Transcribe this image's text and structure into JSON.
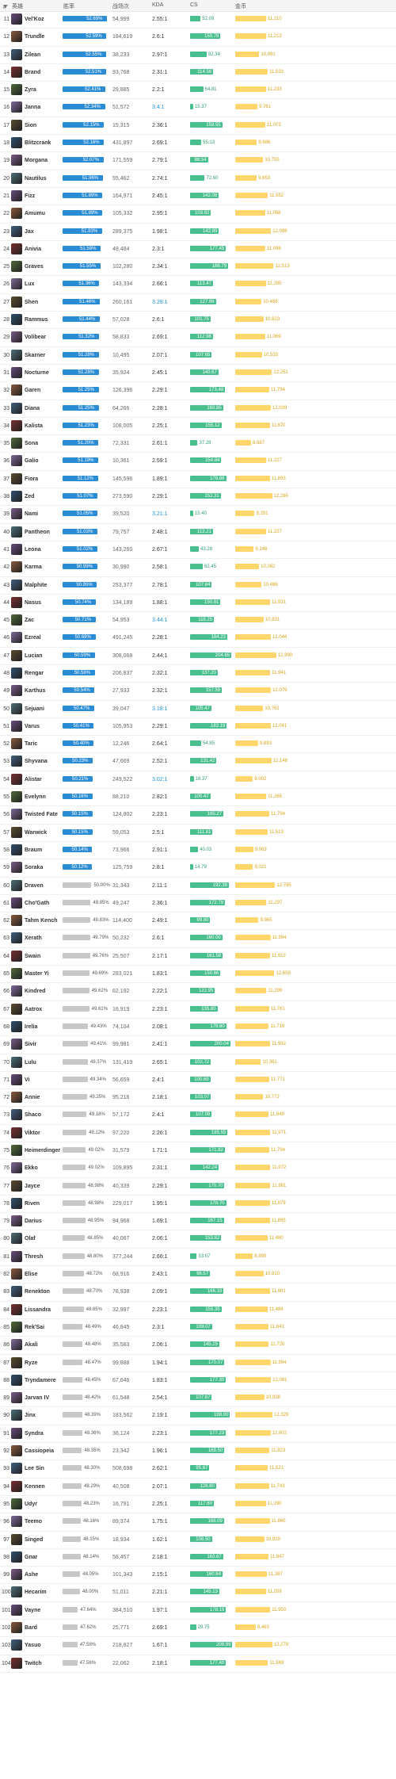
{
  "header": {
    "rank_label": "#",
    "hero": "英雄",
    "winrate": "胜率",
    "games": "战场次",
    "kda": "KDA",
    "cs": "CS",
    "gold": "金币"
  },
  "colors": {
    "winrate_high": "#2b8cd6",
    "winrate_low": "#c8c8c8",
    "cs": "#49bf8d",
    "gold": "#ffd66b",
    "kda_highlight": "#2196d9"
  },
  "rows": [
    {
      "rank": "11",
      "name": "Vel'Koz",
      "winrate": "52.69%",
      "games": "54,999",
      "kda": "2.55:1",
      "cs": "52.09",
      "gold": "11,210"
    },
    {
      "rank": "12",
      "name": "Trundle",
      "winrate": "52.59%",
      "games": "184,619",
      "kda": "2.6:1",
      "cs": "150.79",
      "gold": "11,213"
    },
    {
      "rank": "13",
      "name": "Zilean",
      "winrate": "52.55%",
      "games": "38,233",
      "kda": "2.97:1",
      "cs": "82.34",
      "gold": "10,091"
    },
    {
      "rank": "14",
      "name": "Brand",
      "winrate": "52.51%",
      "games": "93,768",
      "kda": "2.31:1",
      "cs": "114.56",
      "gold": "11,533"
    },
    {
      "rank": "15",
      "name": "Zyra",
      "winrate": "52.41%",
      "games": "29,885",
      "kda": "2.2:1",
      "cs": "64.81",
      "gold": "11,233"
    },
    {
      "rank": "16",
      "name": "Janna",
      "winrate": "52.34%",
      "games": "51,572",
      "kda": "3.4:1",
      "cs": "15.37",
      "gold": "9,761"
    },
    {
      "rank": "17",
      "name": "Sion",
      "winrate": "52.15%",
      "games": "15,315",
      "kda": "2.36:1",
      "cs": "159.55",
      "gold": "11,073"
    },
    {
      "rank": "18",
      "name": "Blitzcrank",
      "winrate": "52.16%",
      "games": "431,897",
      "kda": "2.69:1",
      "cs": "55.13",
      "gold": "9,686"
    },
    {
      "rank": "19",
      "name": "Morgana",
      "winrate": "52.07%",
      "games": "171,559",
      "kda": "2.79:1",
      "cs": "88.54",
      "gold": "10,755"
    },
    {
      "rank": "20",
      "name": "Nautilus",
      "winrate": "51.96%",
      "games": "55,462",
      "kda": "2.74:1",
      "cs": "72.60",
      "gold": "9,653"
    },
    {
      "rank": "21",
      "name": "Fizz",
      "winrate": "51.89%",
      "games": "164,971",
      "kda": "2.45:1",
      "cs": "142.08",
      "gold": "11,552"
    },
    {
      "rank": "22",
      "name": "Amumu",
      "winrate": "51.89%",
      "games": "105,332",
      "kda": "2.95:1",
      "cs": "103.92",
      "gold": "11,058"
    },
    {
      "rank": "23",
      "name": "Jax",
      "winrate": "51.83%",
      "games": "289,375",
      "kda": "1.98:1",
      "cs": "142.89",
      "gold": "12,098"
    },
    {
      "rank": "24",
      "name": "Anivia",
      "winrate": "51.59%",
      "games": "48,484",
      "kda": "2.3:1",
      "cs": "177.45",
      "gold": "11,098"
    },
    {
      "rank": "25",
      "name": "Graves",
      "winrate": "51.55%",
      "games": "102,280",
      "kda": "2.34:1",
      "cs": "188.79",
      "gold": "12,513"
    },
    {
      "rank": "26",
      "name": "Lux",
      "winrate": "51.36%",
      "games": "143,334",
      "kda": "2.66:1",
      "cs": "113.47",
      "gold": "11,185"
    },
    {
      "rank": "27",
      "name": "Shen",
      "winrate": "51.46%",
      "games": "260,161",
      "kda": "3.28:1",
      "cs": "127.96",
      "gold": "10,468"
    },
    {
      "rank": "28",
      "name": "Rammus",
      "winrate": "51.44%",
      "games": "57,028",
      "kda": "2.6:1",
      "cs": "101.75",
      "gold": "10,823"
    },
    {
      "rank": "29",
      "name": "Volibear",
      "winrate": "51.32%",
      "games": "58,833",
      "kda": "2.69:1",
      "cs": "112.98",
      "gold": "11,069"
    },
    {
      "rank": "30",
      "name": "Skarner",
      "winrate": "51.28%",
      "games": "10,495",
      "kda": "2.07:1",
      "cs": "107.65",
      "gold": "10,533"
    },
    {
      "rank": "31",
      "name": "Nocturne",
      "winrate": "51.28%",
      "games": "35,924",
      "kda": "2.45:1",
      "cs": "140.67",
      "gold": "12,251"
    },
    {
      "rank": "32",
      "name": "Garen",
      "winrate": "51.25%",
      "games": "126,396",
      "kda": "2.29:1",
      "cs": "173.48",
      "gold": "11,794"
    },
    {
      "rank": "33",
      "name": "Diana",
      "winrate": "51.25%",
      "games": "64,266",
      "kda": "2.28:1",
      "cs": "163.85",
      "gold": "12,039"
    },
    {
      "rank": "34",
      "name": "Kalista",
      "winrate": "51.23%",
      "games": "108,005",
      "kda": "2.25:1",
      "cs": "155.12",
      "gold": "11,870"
    },
    {
      "rank": "35",
      "name": "Sona",
      "winrate": "51.20%",
      "games": "72,331",
      "kda": "2.61:1",
      "cs": "37.28",
      "gold": "8,687"
    },
    {
      "rank": "36",
      "name": "Galio",
      "winrate": "51.19%",
      "games": "10,361",
      "kda": "2.59:1",
      "cs": "154.84",
      "gold": "11,227"
    },
    {
      "rank": "37",
      "name": "Fiora",
      "winrate": "51.12%",
      "games": "145,596",
      "kda": "1.89:1",
      "cs": "178.68",
      "gold": "11,893"
    },
    {
      "rank": "38",
      "name": "Zed",
      "winrate": "51.07%",
      "games": "273,590",
      "kda": "2.29:1",
      "cs": "152.31",
      "gold": "12,265"
    },
    {
      "rank": "39",
      "name": "Nami",
      "winrate": "51.05%",
      "games": "39,520",
      "kda": "3.21:1",
      "cs": "15.40",
      "gold": "9,291"
    },
    {
      "rank": "40",
      "name": "Pantheon",
      "winrate": "51.03%",
      "games": "79,757",
      "kda": "2.48:1",
      "cs": "113.21",
      "gold": "11,227"
    },
    {
      "rank": "41",
      "name": "Leona",
      "winrate": "51.02%",
      "games": "143,260",
      "kda": "2.67:1",
      "cs": "43.28",
      "gold": "9,148"
    },
    {
      "rank": "42",
      "name": "Karma",
      "winrate": "50.99%",
      "games": "30,990",
      "kda": "2.58:1",
      "cs": "62.45",
      "gold": "10,062"
    },
    {
      "rank": "43",
      "name": "Malphite",
      "winrate": "50.95%",
      "games": "253,377",
      "kda": "2.78:1",
      "cs": "107.84",
      "gold": "10,486"
    },
    {
      "rank": "44",
      "name": "Nasus",
      "winrate": "50.74%",
      "games": "134,189",
      "kda": "1.88:1",
      "cs": "150.81",
      "gold": "11,931"
    },
    {
      "rank": "45",
      "name": "Zac",
      "winrate": "50.71%",
      "games": "54,953",
      "kda": "3.44:1",
      "cs": "118.25",
      "gold": "10,831"
    },
    {
      "rank": "46",
      "name": "Ezreal",
      "winrate": "50.69%",
      "games": "491,245",
      "kda": "2.28:1",
      "cs": "184.23",
      "gold": "12,044"
    },
    {
      "rank": "47",
      "name": "Lucian",
      "winrate": "50.59%",
      "games": "308,068",
      "kda": "2.44:1",
      "cs": "204.65",
      "gold": "12,990"
    },
    {
      "rank": "48",
      "name": "Rengar",
      "winrate": "50.58%",
      "games": "206,837",
      "kda": "2.32:1",
      "cs": "137.20",
      "gold": "11,941"
    },
    {
      "rank": "49",
      "name": "Karthus",
      "winrate": "50.54%",
      "games": "27,933",
      "kda": "2.32:1",
      "cs": "157.59",
      "gold": "12,079"
    },
    {
      "rank": "50",
      "name": "Sejuani",
      "winrate": "50.47%",
      "games": "39,047",
      "kda": "3.18:1",
      "cs": "105.47",
      "gold": "10,761"
    },
    {
      "rank": "51",
      "name": "Varus",
      "winrate": "50.41%",
      "games": "105,953",
      "kda": "2.29:1",
      "cs": "182.19",
      "gold": "12,041"
    },
    {
      "rank": "52",
      "name": "Taric",
      "winrate": "50.40%",
      "games": "12,246",
      "kda": "2.64:1",
      "cs": "54.85",
      "gold": "9,893"
    },
    {
      "rank": "53",
      "name": "Shyvana",
      "winrate": "50.23%",
      "games": "47,669",
      "kda": "2.52:1",
      "cs": "131.42",
      "gold": "12,148"
    },
    {
      "rank": "54",
      "name": "Alistar",
      "winrate": "50.21%",
      "games": "249,522",
      "kda": "3.02:1",
      "cs": "18.37",
      "gold": "9,002"
    },
    {
      "rank": "55",
      "name": "Evelynn",
      "winrate": "50.16%",
      "games": "88,210",
      "kda": "2.82:1",
      "cs": "100.47",
      "gold": "11,265"
    },
    {
      "rank": "56",
      "name": "Twisted Fate",
      "winrate": "50.15%",
      "games": "124,802",
      "kda": "2.23:1",
      "cs": "165.27",
      "gold": "11,794"
    },
    {
      "rank": "57",
      "name": "Warwick",
      "winrate": "50.15%",
      "games": "59,053",
      "kda": "2.5:1",
      "cs": "111.81",
      "gold": "11,513"
    },
    {
      "rank": "58",
      "name": "Braum",
      "winrate": "50.14%",
      "games": "73,966",
      "kda": "2.91:1",
      "cs": "40.03",
      "gold": "9,063"
    },
    {
      "rank": "59",
      "name": "Soraka",
      "winrate": "50.12%",
      "games": "125,759",
      "kda": "2.8:1",
      "cs": "14.79",
      "gold": "9,021"
    },
    {
      "rank": "60",
      "name": "Draven",
      "winrate": "50.00%",
      "games": "31,343",
      "kda": "2.11:1",
      "cs": "192.39",
      "gold": "12,785"
    },
    {
      "rank": "61",
      "name": "Cho'Gath",
      "winrate": "49.85%",
      "games": "49,247",
      "kda": "2.36:1",
      "cs": "172.79",
      "gold": "11,297"
    },
    {
      "rank": "62",
      "name": "Tahm Kench",
      "winrate": "49.83%",
      "games": "114,400",
      "kda": "2.49:1",
      "cs": "99.80",
      "gold": "9,965"
    },
    {
      "rank": "63",
      "name": "Xerath",
      "winrate": "49.79%",
      "games": "50,232",
      "kda": "2.6:1",
      "cs": "160.00",
      "gold": "11,994"
    },
    {
      "rank": "64",
      "name": "Swain",
      "winrate": "49.76%",
      "games": "25,507",
      "kda": "2.17:1",
      "cs": "161.58",
      "gold": "11,912"
    },
    {
      "rank": "65",
      "name": "Master Yi",
      "winrate": "49.69%",
      "games": "283,021",
      "kda": "1.83:1",
      "cs": "150.66",
      "gold": "12,659"
    },
    {
      "rank": "66",
      "name": "Kindred",
      "winrate": "49.62%",
      "games": "62,192",
      "kda": "2.22:1",
      "cs": "122.95",
      "gold": "11,299"
    },
    {
      "rank": "67",
      "name": "Aatrox",
      "winrate": "49.61%",
      "games": "16,919",
      "kda": "2.23:1",
      "cs": "135.80",
      "gold": "11,761"
    },
    {
      "rank": "68",
      "name": "Irelia",
      "winrate": "49.43%",
      "games": "74,104",
      "kda": "2.08:1",
      "cs": "179.60",
      "gold": "11,719"
    },
    {
      "rank": "69",
      "name": "Sivir",
      "winrate": "49.41%",
      "games": "99,981",
      "kda": "2.41:1",
      "cs": "200.04",
      "gold": "11,932"
    },
    {
      "rank": "70",
      "name": "Lulu",
      "winrate": "49.37%",
      "games": "131,419",
      "kda": "2.65:1",
      "cs": "102.72",
      "gold": "10,361"
    },
    {
      "rank": "71",
      "name": "Vi",
      "winrate": "49.34%",
      "games": "56,659",
      "kda": "2.4:1",
      "cs": "100.69",
      "gold": "11,771"
    },
    {
      "rank": "72",
      "name": "Annie",
      "winrate": "49.25%",
      "games": "95,216",
      "kda": "2.18:1",
      "cs": "103.07",
      "gold": "10,772"
    },
    {
      "rank": "73",
      "name": "Shaco",
      "winrate": "49.18%",
      "games": "57,172",
      "kda": "2.4:1",
      "cs": "107.09",
      "gold": "11,649"
    },
    {
      "rank": "74",
      "name": "Viktor",
      "winrate": "49.12%",
      "games": "97,220",
      "kda": "2.26:1",
      "cs": "185.55",
      "gold": "11,971"
    },
    {
      "rank": "75",
      "name": "Heimerdinger",
      "winrate": "49.02%",
      "games": "31,579",
      "kda": "1.71:1",
      "cs": "171.82",
      "gold": "11,794"
    },
    {
      "rank": "76",
      "name": "Ekko",
      "winrate": "49.02%",
      "games": "109,895",
      "kda": "2.31:1",
      "cs": "142.24",
      "gold": "11,972"
    },
    {
      "rank": "77",
      "name": "Jayce",
      "winrate": "48.98%",
      "games": "40,339",
      "kda": "2.29:1",
      "cs": "170.70",
      "gold": "11,981"
    },
    {
      "rank": "78",
      "name": "Riven",
      "winrate": "48.98%",
      "games": "229,017",
      "kda": "1.95:1",
      "cs": "178.70",
      "gold": "11,879"
    },
    {
      "rank": "79",
      "name": "Darius",
      "winrate": "48.95%",
      "games": "94,968",
      "kda": "1.69:1",
      "cs": "167.15",
      "gold": "11,895"
    },
    {
      "rank": "80",
      "name": "Olaf",
      "winrate": "48.85%",
      "games": "40,067",
      "kda": "2.06:1",
      "cs": "153.82",
      "gold": "11,480"
    },
    {
      "rank": "81",
      "name": "Thresh",
      "winrate": "48.80%",
      "games": "377,244",
      "kda": "2.66:1",
      "cs": "33.07",
      "gold": "8,990"
    },
    {
      "rank": "82",
      "name": "Elise",
      "winrate": "48.72%",
      "games": "68,916",
      "kda": "2.43:1",
      "cs": "98.57",
      "gold": "10,810"
    },
    {
      "rank": "83",
      "name": "Renekton",
      "winrate": "48.70%",
      "games": "78,938",
      "kda": "2.09:1",
      "cs": "166.18",
      "gold": "11,901"
    },
    {
      "rank": "84",
      "name": "Lissandra",
      "winrate": "48.65%",
      "games": "32,997",
      "kda": "2.23:1",
      "cs": "155.35",
      "gold": "11,484"
    },
    {
      "rank": "85",
      "name": "Rek'Sai",
      "winrate": "48.49%",
      "games": "46,845",
      "kda": "2.3:1",
      "cs": "109.07",
      "gold": "11,641"
    },
    {
      "rank": "86",
      "name": "Akali",
      "winrate": "48.48%",
      "games": "35,583",
      "kda": "2.06:1",
      "cs": "145.25",
      "gold": "11,720"
    },
    {
      "rank": "87",
      "name": "Ryze",
      "winrate": "48.47%",
      "games": "99,888",
      "kda": "1.94:1",
      "cs": "170.07",
      "gold": "11,994"
    },
    {
      "rank": "88",
      "name": "Tryndamere",
      "winrate": "48.45%",
      "games": "67,646",
      "kda": "1.83:1",
      "cs": "177.30",
      "gold": "12,081"
    },
    {
      "rank": "89",
      "name": "Jarvan IV",
      "winrate": "48.42%",
      "games": "61,548",
      "kda": "2.54:1",
      "cs": "107.87",
      "gold": "10,938"
    },
    {
      "rank": "90",
      "name": "Jinx",
      "winrate": "48.39%",
      "games": "183,562",
      "kda": "2.19:1",
      "cs": "198.00",
      "gold": "12,329"
    },
    {
      "rank": "91",
      "name": "Syndra",
      "winrate": "48.36%",
      "games": "36,124",
      "kda": "2.23:1",
      "cs": "177.23",
      "gold": "12,002"
    },
    {
      "rank": "92",
      "name": "Cassiopeia",
      "winrate": "48.35%",
      "games": "23,342",
      "kda": "1.96:1",
      "cs": "169.50",
      "gold": "11,823"
    },
    {
      "rank": "93",
      "name": "Lee Sin",
      "winrate": "48.30%",
      "games": "508,698",
      "kda": "2.62:1",
      "cs": "95.87",
      "gold": "11,521"
    },
    {
      "rank": "94",
      "name": "Kennen",
      "winrate": "48.29%",
      "games": "40,508",
      "kda": "2.07:1",
      "cs": "128.80",
      "gold": "11,743"
    },
    {
      "rank": "95",
      "name": "Udyr",
      "winrate": "48.23%",
      "games": "16,791",
      "kda": "2.25:1",
      "cs": "117.60",
      "gold": "11,190"
    },
    {
      "rank": "96",
      "name": "Teemo",
      "winrate": "48.16%",
      "games": "89,374",
      "kda": "1.75:1",
      "cs": "168.09",
      "gold": "11,860"
    },
    {
      "rank": "97",
      "name": "Singed",
      "winrate": "48.15%",
      "games": "18,934",
      "kda": "1.62:1",
      "cs": "108.50",
      "gold": "10,919"
    },
    {
      "rank": "98",
      "name": "Gnar",
      "winrate": "48.14%",
      "games": "58,457",
      "kda": "2.18:1",
      "cs": "163.67",
      "gold": "11,647"
    },
    {
      "rank": "99",
      "name": "Ashe",
      "winrate": "48.05%",
      "games": "101,343",
      "kda": "2.15:1",
      "cs": "160.84",
      "gold": "11,387"
    },
    {
      "rank": "100",
      "name": "Hecarim",
      "winrate": "48.00%",
      "games": "51,011",
      "kda": "2.21:1",
      "cs": "145.13",
      "gold": "11,209"
    },
    {
      "rank": "101",
      "name": "Vayne",
      "winrate": "47.64%",
      "games": "384,510",
      "kda": "1.97:1",
      "cs": "178.19",
      "gold": "11,950"
    },
    {
      "rank": "102",
      "name": "Bard",
      "winrate": "47.62%",
      "games": "25,771",
      "kda": "2.69:1",
      "cs": "29.75",
      "gold": "9,463"
    },
    {
      "rank": "103",
      "name": "Yasuo",
      "winrate": "47.58%",
      "games": "218,827",
      "kda": "1.67:1",
      "cs": "209.99",
      "gold": "12,279"
    },
    {
      "rank": "104",
      "name": "Twitch",
      "winrate": "47.56%",
      "games": "22,062",
      "kda": "2.18:1",
      "cs": "177.40",
      "gold": "11,569"
    }
  ]
}
